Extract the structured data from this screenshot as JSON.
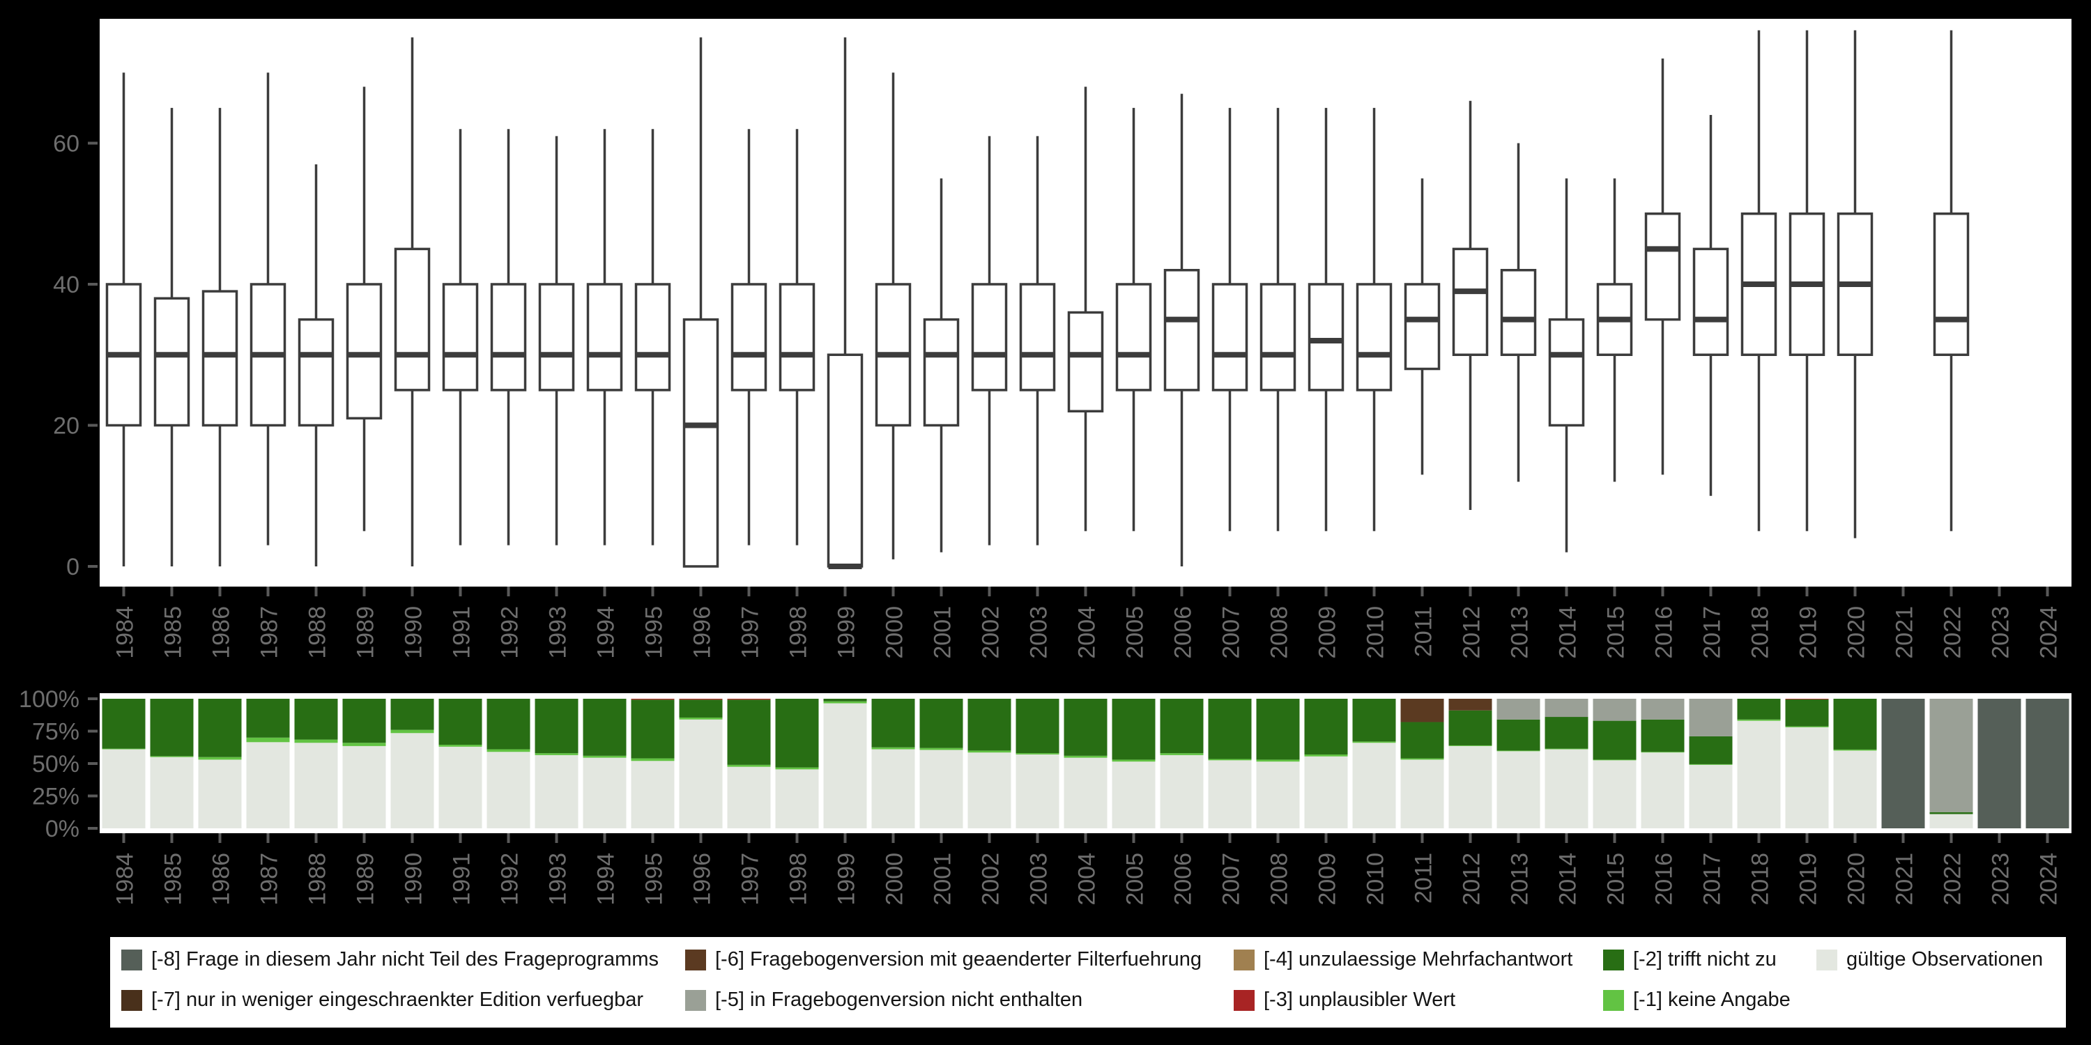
{
  "page": {
    "background": "#000000",
    "panel_bg": "#ffffff",
    "axis_text_color": "#6e6e6e",
    "tick_color": "#5a5a5a",
    "box_stroke_color": "#3c3c3c"
  },
  "chart_data": [
    {
      "type": "boxplot",
      "title": "",
      "xlabel": "",
      "ylabel": "",
      "grid": false,
      "legend_position": "none",
      "ylim": [
        -6,
        78
      ],
      "yticks": [
        {
          "label": "0",
          "value": 0
        },
        {
          "label": "20",
          "value": 20
        },
        {
          "label": "40",
          "value": 40
        },
        {
          "label": "60",
          "value": 60
        }
      ],
      "categories": [
        "1984",
        "1985",
        "1986",
        "1987",
        "1988",
        "1989",
        "1990",
        "1991",
        "1992",
        "1993",
        "1994",
        "1995",
        "1996",
        "1997",
        "1998",
        "1999",
        "2000",
        "2001",
        "2002",
        "2003",
        "2004",
        "2005",
        "2006",
        "2007",
        "2008",
        "2009",
        "2010",
        "2011",
        "2012",
        "2013",
        "2014",
        "2015",
        "2016",
        "2017",
        "2018",
        "2019",
        "2020",
        "2021",
        "2022",
        "2023",
        "2024"
      ],
      "stats_order": [
        "min",
        "q1",
        "median",
        "q3",
        "max"
      ],
      "stats": [
        [
          0,
          20,
          30,
          40,
          70
        ],
        [
          0,
          20,
          30,
          38,
          65
        ],
        [
          0,
          20,
          30,
          39,
          65
        ],
        [
          3,
          20,
          30,
          40,
          70
        ],
        [
          0,
          20,
          30,
          35,
          57
        ],
        [
          5,
          21,
          30,
          40,
          68
        ],
        [
          0,
          25,
          30,
          45,
          75
        ],
        [
          3,
          25,
          30,
          40,
          62
        ],
        [
          3,
          25,
          30,
          40,
          62
        ],
        [
          3,
          25,
          30,
          40,
          61
        ],
        [
          3,
          25,
          30,
          40,
          62
        ],
        [
          3,
          25,
          30,
          40,
          62
        ],
        [
          0,
          0,
          20,
          35,
          75
        ],
        [
          3,
          25,
          30,
          40,
          62
        ],
        [
          3,
          25,
          30,
          40,
          62
        ],
        [
          0,
          0,
          0,
          30,
          75
        ],
        [
          1,
          20,
          30,
          40,
          70
        ],
        [
          2,
          20,
          30,
          35,
          55
        ],
        [
          3,
          25,
          30,
          40,
          61
        ],
        [
          3,
          25,
          30,
          40,
          61
        ],
        [
          5,
          22,
          30,
          36,
          68
        ],
        [
          5,
          25,
          30,
          40,
          65
        ],
        [
          0,
          25,
          35,
          42,
          67
        ],
        [
          5,
          25,
          30,
          40,
          65
        ],
        [
          5,
          25,
          30,
          40,
          65
        ],
        [
          5,
          25,
          32,
          40,
          65
        ],
        [
          5,
          25,
          30,
          40,
          65
        ],
        [
          13,
          28,
          35,
          40,
          55
        ],
        [
          8,
          30,
          39,
          45,
          66
        ],
        [
          12,
          30,
          35,
          42,
          60
        ],
        [
          2,
          20,
          30,
          35,
          55
        ],
        [
          12,
          30,
          35,
          40,
          55
        ],
        [
          13,
          35,
          45,
          50,
          72
        ],
        [
          10,
          30,
          35,
          45,
          64
        ],
        [
          5,
          30,
          40,
          50,
          76
        ],
        [
          5,
          30,
          40,
          50,
          76
        ],
        [
          4,
          30,
          40,
          50,
          76
        ],
        null,
        [
          5,
          30,
          35,
          50,
          76
        ],
        null,
        null
      ]
    },
    {
      "type": "bar",
      "subtype": "stacked-100-percent",
      "title": "",
      "xlabel": "",
      "ylabel": "",
      "grid": false,
      "legend_position": "bottom",
      "ylim": [
        0,
        100
      ],
      "yticks": [
        {
          "label": "0%",
          "value": 0
        },
        {
          "label": "25%",
          "value": 25
        },
        {
          "label": "50%",
          "value": 50
        },
        {
          "label": "75%",
          "value": 75
        },
        {
          "label": "100%",
          "value": 100
        }
      ],
      "categories": [
        "1984",
        "1985",
        "1986",
        "1987",
        "1988",
        "1989",
        "1990",
        "1991",
        "1992",
        "1993",
        "1994",
        "1995",
        "1996",
        "1997",
        "1998",
        "1999",
        "2000",
        "2001",
        "2002",
        "2003",
        "2004",
        "2005",
        "2006",
        "2007",
        "2008",
        "2009",
        "2010",
        "2011",
        "2012",
        "2013",
        "2014",
        "2015",
        "2016",
        "2017",
        "2018",
        "2019",
        "2020",
        "2021",
        "2022",
        "2023",
        "2024"
      ],
      "series": [
        {
          "name": "gültige Observationen",
          "color": "#e3e7e0",
          "values": [
            61,
            55,
            53,
            66.5,
            66,
            63.5,
            73.5,
            63,
            59,
            56.5,
            54.5,
            52,
            84,
            47.5,
            45.5,
            96.5,
            61,
            60.5,
            58.5,
            57,
            54.5,
            51.5,
            56.5,
            52.5,
            51.5,
            55.5,
            66,
            53,
            63.5,
            59.5,
            61,
            52.5,
            58.5,
            49,
            83,
            78,
            60,
            0,
            11,
            0,
            0
          ]
        },
        {
          "name": "[-1] keine Angabe",
          "color": "#62c343",
          "values": [
            0.5,
            0.7,
            2,
            3.5,
            2.5,
            2.5,
            2.5,
            1.5,
            2,
            1.5,
            1.5,
            2,
            1.5,
            1.5,
            1.5,
            1.5,
            1.5,
            1.5,
            1.5,
            1,
            1.5,
            1.5,
            1.5,
            1,
            1.5,
            1.5,
            1,
            1,
            0.5,
            0.5,
            0.5,
            0.5,
            0.5,
            0.5,
            1,
            0.7,
            0.8,
            0,
            0,
            0,
            0
          ]
        },
        {
          "name": "[-2] trifft nicht zu",
          "color": "#286e14",
          "values": [
            38.5,
            44.3,
            45,
            30,
            31.5,
            34,
            24,
            35.5,
            39,
            42,
            44,
            45.3,
            13.8,
            50.3,
            53,
            2,
            37.5,
            38,
            40,
            42,
            44,
            47,
            42,
            46.5,
            47,
            43,
            33,
            28,
            27,
            24,
            24.5,
            30,
            25,
            21.5,
            16,
            20.8,
            39.2,
            0,
            1.5,
            0,
            0
          ]
        },
        {
          "name": "[-3] unplausibler Wert",
          "color": "#a82424",
          "values": [
            0,
            0,
            0,
            0,
            0,
            0,
            0,
            0,
            0,
            0,
            0,
            0.7,
            0.7,
            0.7,
            0,
            0,
            0,
            0,
            0,
            0,
            0,
            0,
            0,
            0,
            0,
            0,
            0,
            0,
            0,
            0,
            0,
            0,
            0,
            0,
            0,
            0.5,
            0,
            0,
            0,
            0,
            0
          ]
        },
        {
          "name": "[-4] unzulaessige Mehrfachantwort",
          "color": "#a08050",
          "values": [
            0,
            0,
            0,
            0,
            0,
            0,
            0,
            0,
            0,
            0,
            0,
            0,
            0,
            0,
            0,
            0,
            0,
            0,
            0,
            0,
            0,
            0,
            0,
            0,
            0,
            0,
            0,
            0,
            0,
            0,
            0,
            0,
            0,
            0,
            0,
            0,
            0,
            0,
            0,
            0,
            0
          ]
        },
        {
          "name": "[-5] in Fragebogenversion nicht enthalten",
          "color": "#9aa096",
          "values": [
            0,
            0,
            0,
            0,
            0,
            0,
            0,
            0,
            0,
            0,
            0,
            0,
            0,
            0,
            0,
            0,
            0,
            0,
            0,
            0,
            0,
            0,
            0,
            0,
            0,
            0,
            0,
            0,
            0,
            16,
            14,
            17,
            16,
            29,
            0,
            0,
            0,
            0,
            87.5,
            0,
            0
          ]
        },
        {
          "name": "[-6] Fragebogenversion mit geaenderter Filterfuehrung",
          "color": "#5b3a21",
          "values": [
            0,
            0,
            0,
            0,
            0,
            0,
            0,
            0,
            0,
            0,
            0,
            0,
            0,
            0,
            0,
            0,
            0,
            0,
            0,
            0,
            0,
            0,
            0,
            0,
            0,
            0,
            0,
            18,
            9,
            0,
            0,
            0,
            0,
            0,
            0,
            0,
            0,
            0,
            0,
            0,
            0
          ]
        },
        {
          "name": "[-7] nur in weniger eingeschraenkter Edition verfuegbar",
          "color": "#49301b",
          "values": [
            0,
            0,
            0,
            0,
            0,
            0,
            0,
            0,
            0,
            0,
            0,
            0,
            0,
            0,
            0,
            0,
            0,
            0,
            0,
            0,
            0,
            0,
            0,
            0,
            0,
            0,
            0,
            0,
            0,
            0,
            0,
            0,
            0,
            0,
            0,
            0,
            0,
            0,
            0,
            0,
            0
          ]
        },
        {
          "name": "[-8] Frage in diesem Jahr nicht Teil des Frageprogramms",
          "color": "#555f58",
          "values": [
            0,
            0,
            0,
            0,
            0,
            0,
            0,
            0,
            0,
            0,
            0,
            0,
            0,
            0,
            0,
            0,
            0,
            0,
            0,
            0,
            0,
            0,
            0,
            0,
            0,
            0,
            0,
            0,
            0,
            0,
            0,
            0,
            0,
            0,
            0,
            0,
            0,
            100,
            0,
            100,
            100
          ]
        }
      ]
    }
  ],
  "legend": {
    "items": [
      {
        "label": "[-8] Frage in diesem Jahr nicht Teil des Frageprogramms",
        "color": "#555f58",
        "row": 0,
        "col": 0
      },
      {
        "label": "[-7] nur in weniger eingeschraenkter Edition verfuegbar",
        "color": "#49301b",
        "row": 1,
        "col": 0
      },
      {
        "label": "[-6] Fragebogenversion mit geaenderter Filterfuehrung",
        "color": "#5b3a21",
        "row": 0,
        "col": 1
      },
      {
        "label": "[-5] in Fragebogenversion nicht enthalten",
        "color": "#9aa096",
        "row": 1,
        "col": 1
      },
      {
        "label": "[-4] unzulaessige Mehrfachantwort",
        "color": "#a08050",
        "row": 0,
        "col": 2
      },
      {
        "label": "[-3] unplausibler Wert",
        "color": "#a82424",
        "row": 1,
        "col": 2
      },
      {
        "label": "[-2] trifft nicht zu",
        "color": "#286e14",
        "row": 0,
        "col": 3
      },
      {
        "label": "[-1] keine Angabe",
        "color": "#62c343",
        "row": 1,
        "col": 3
      },
      {
        "label": "gültige Observationen",
        "color": "#e3e7e0",
        "row": 0,
        "col": 4
      }
    ]
  }
}
